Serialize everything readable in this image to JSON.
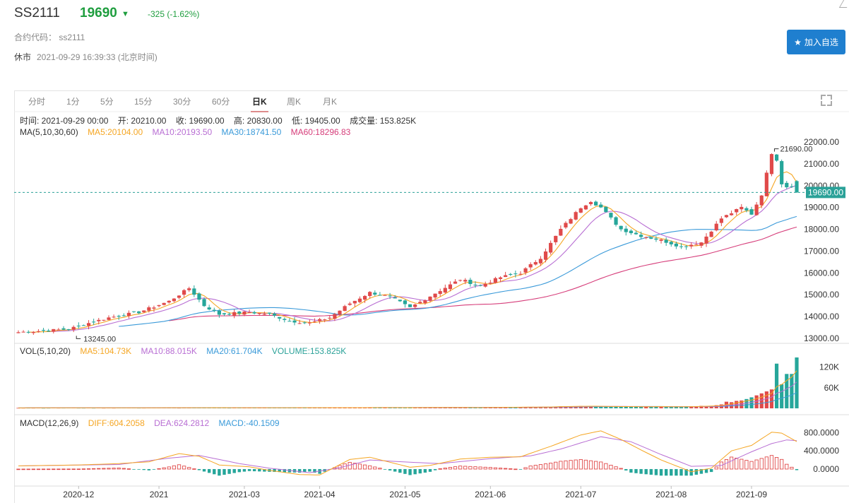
{
  "header": {
    "symbol": "SS2111",
    "price": "19690",
    "arrow": "▼",
    "change": "-325 (-1.62%)",
    "code_label": "合约代码：",
    "code_value": "ss2111",
    "status": "休市",
    "timestamp": "2021-09-29 16:39:33 (北京时间)",
    "add_button": "加入自选"
  },
  "tabs": [
    "分时",
    "1分",
    "5分",
    "15分",
    "30分",
    "60分",
    "日K",
    "周K",
    "月K"
  ],
  "active_tab": "日K",
  "ohlc_info": {
    "time": "时间: 2021-09-29 00:00",
    "open": "开: 20210.00",
    "close": "收: 19690.00",
    "high": "高: 20830.00",
    "low": "低: 19405.00",
    "volume": "成交量: 153.825K"
  },
  "ma_info": {
    "label": "MA(5,10,30,60)",
    "ma5": "MA5:20104.00",
    "ma10": "MA10:20193.50",
    "ma30": "MA30:18741.50",
    "ma60": "MA60:18296.83"
  },
  "vol_info": {
    "label": "VOL(5,10,20)",
    "ma5": "MA5:104.73K",
    "ma10": "MA10:88.015K",
    "ma20": "MA20:61.704K",
    "volume": "VOLUME:153.825K"
  },
  "macd_info": {
    "label": "MACD(12,26,9)",
    "diff": "DIFF:604.2058",
    "dea": "DEA:624.2812",
    "macd": "MACD:-40.1509"
  },
  "colors": {
    "up": "#e04a4a",
    "down": "#26a69a",
    "ma5": "#f5a623",
    "ma10": "#b86ed3",
    "ma30": "#3a9ad9",
    "ma60": "#d63d7a",
    "price_tag": "#2aa198"
  },
  "chart_data": {
    "type": "candlestick",
    "price_axis": {
      "range": [
        12900,
        22100
      ],
      "ticks": [
        "13000.00",
        "14000.00",
        "15000.00",
        "16000.00",
        "17000.00",
        "18000.00",
        "19000.00",
        "20000.00",
        "21000.00",
        "22000.00"
      ]
    },
    "current_price_label": "19690.00",
    "current_price": 19690,
    "max_annotation": "21690.00",
    "max_value": 21690,
    "min_annotation": "13245.00",
    "min_value": 13245,
    "volume_axis": {
      "range": [
        0,
        150
      ],
      "ticks": [
        "60K",
        "120K"
      ]
    },
    "macd_axis": {
      "range": [
        -280,
        900
      ],
      "ticks": [
        "0.0000",
        "400.0000",
        "800.0000"
      ]
    },
    "x_labels": [
      "2020-12",
      "2021",
      "2021-03",
      "2021-04",
      "2021-05",
      "2021-06",
      "2021-07",
      "2021-08",
      "2021-09"
    ],
    "x_label_index": [
      12,
      28,
      45,
      60,
      77,
      94,
      112,
      130,
      146
    ],
    "close_keyframes": [
      [
        0,
        13280
      ],
      [
        10,
        13420
      ],
      [
        14,
        13700
      ],
      [
        18,
        13950
      ],
      [
        24,
        14200
      ],
      [
        30,
        14700
      ],
      [
        34,
        15300
      ],
      [
        37,
        14500
      ],
      [
        40,
        14100
      ],
      [
        46,
        14200
      ],
      [
        50,
        14100
      ],
      [
        54,
        13800
      ],
      [
        58,
        13700
      ],
      [
        62,
        13950
      ],
      [
        66,
        14600
      ],
      [
        70,
        15100
      ],
      [
        74,
        14900
      ],
      [
        78,
        14400
      ],
      [
        84,
        15200
      ],
      [
        88,
        15700
      ],
      [
        92,
        15400
      ],
      [
        96,
        15800
      ],
      [
        100,
        16000
      ],
      [
        104,
        16700
      ],
      [
        108,
        18000
      ],
      [
        112,
        19000
      ],
      [
        114,
        19300
      ],
      [
        116,
        19000
      ],
      [
        120,
        18000
      ],
      [
        124,
        17700
      ],
      [
        128,
        17500
      ],
      [
        132,
        17200
      ],
      [
        136,
        17400
      ],
      [
        140,
        18500
      ],
      [
        144,
        19000
      ],
      [
        146,
        18700
      ],
      [
        148,
        19600
      ],
      [
        150,
        21500
      ],
      [
        151,
        21200
      ],
      [
        152,
        20100
      ],
      [
        153,
        19950
      ],
      [
        154,
        20010
      ],
      [
        155,
        19690
      ]
    ],
    "volume_keyframes": [
      [
        0,
        1.5
      ],
      [
        60,
        2.0
      ],
      [
        90,
        2.5
      ],
      [
        104,
        4
      ],
      [
        112,
        7
      ],
      [
        122,
        4.5
      ],
      [
        132,
        4.5
      ],
      [
        138,
        7
      ],
      [
        142,
        20
      ],
      [
        146,
        32
      ],
      [
        150,
        55
      ],
      [
        151,
        130
      ],
      [
        152,
        70
      ],
      [
        153,
        100
      ],
      [
        154,
        100
      ],
      [
        155,
        148
      ]
    ],
    "diff_keyframes": [
      [
        0,
        70
      ],
      [
        12,
        90
      ],
      [
        20,
        120
      ],
      [
        26,
        160
      ],
      [
        32,
        340
      ],
      [
        36,
        280
      ],
      [
        40,
        90
      ],
      [
        46,
        50
      ],
      [
        50,
        -30
      ],
      [
        56,
        -120
      ],
      [
        60,
        -130
      ],
      [
        66,
        210
      ],
      [
        70,
        260
      ],
      [
        78,
        40
      ],
      [
        82,
        80
      ],
      [
        88,
        220
      ],
      [
        94,
        260
      ],
      [
        100,
        270
      ],
      [
        106,
        500
      ],
      [
        112,
        750
      ],
      [
        116,
        840
      ],
      [
        120,
        650
      ],
      [
        124,
        420
      ],
      [
        128,
        200
      ],
      [
        134,
        -60
      ],
      [
        138,
        20
      ],
      [
        142,
        400
      ],
      [
        146,
        520
      ],
      [
        150,
        810
      ],
      [
        152,
        790
      ],
      [
        155,
        604
      ]
    ],
    "dea_keyframes": [
      [
        0,
        70
      ],
      [
        20,
        100
      ],
      [
        30,
        240
      ],
      [
        36,
        300
      ],
      [
        44,
        120
      ],
      [
        50,
        20
      ],
      [
        58,
        -80
      ],
      [
        64,
        30
      ],
      [
        70,
        200
      ],
      [
        78,
        150
      ],
      [
        84,
        120
      ],
      [
        94,
        230
      ],
      [
        102,
        290
      ],
      [
        108,
        440
      ],
      [
        116,
        710
      ],
      [
        122,
        600
      ],
      [
        128,
        320
      ],
      [
        134,
        60
      ],
      [
        140,
        80
      ],
      [
        146,
        380
      ],
      [
        150,
        560
      ],
      [
        153,
        640
      ],
      [
        155,
        624
      ]
    ]
  }
}
